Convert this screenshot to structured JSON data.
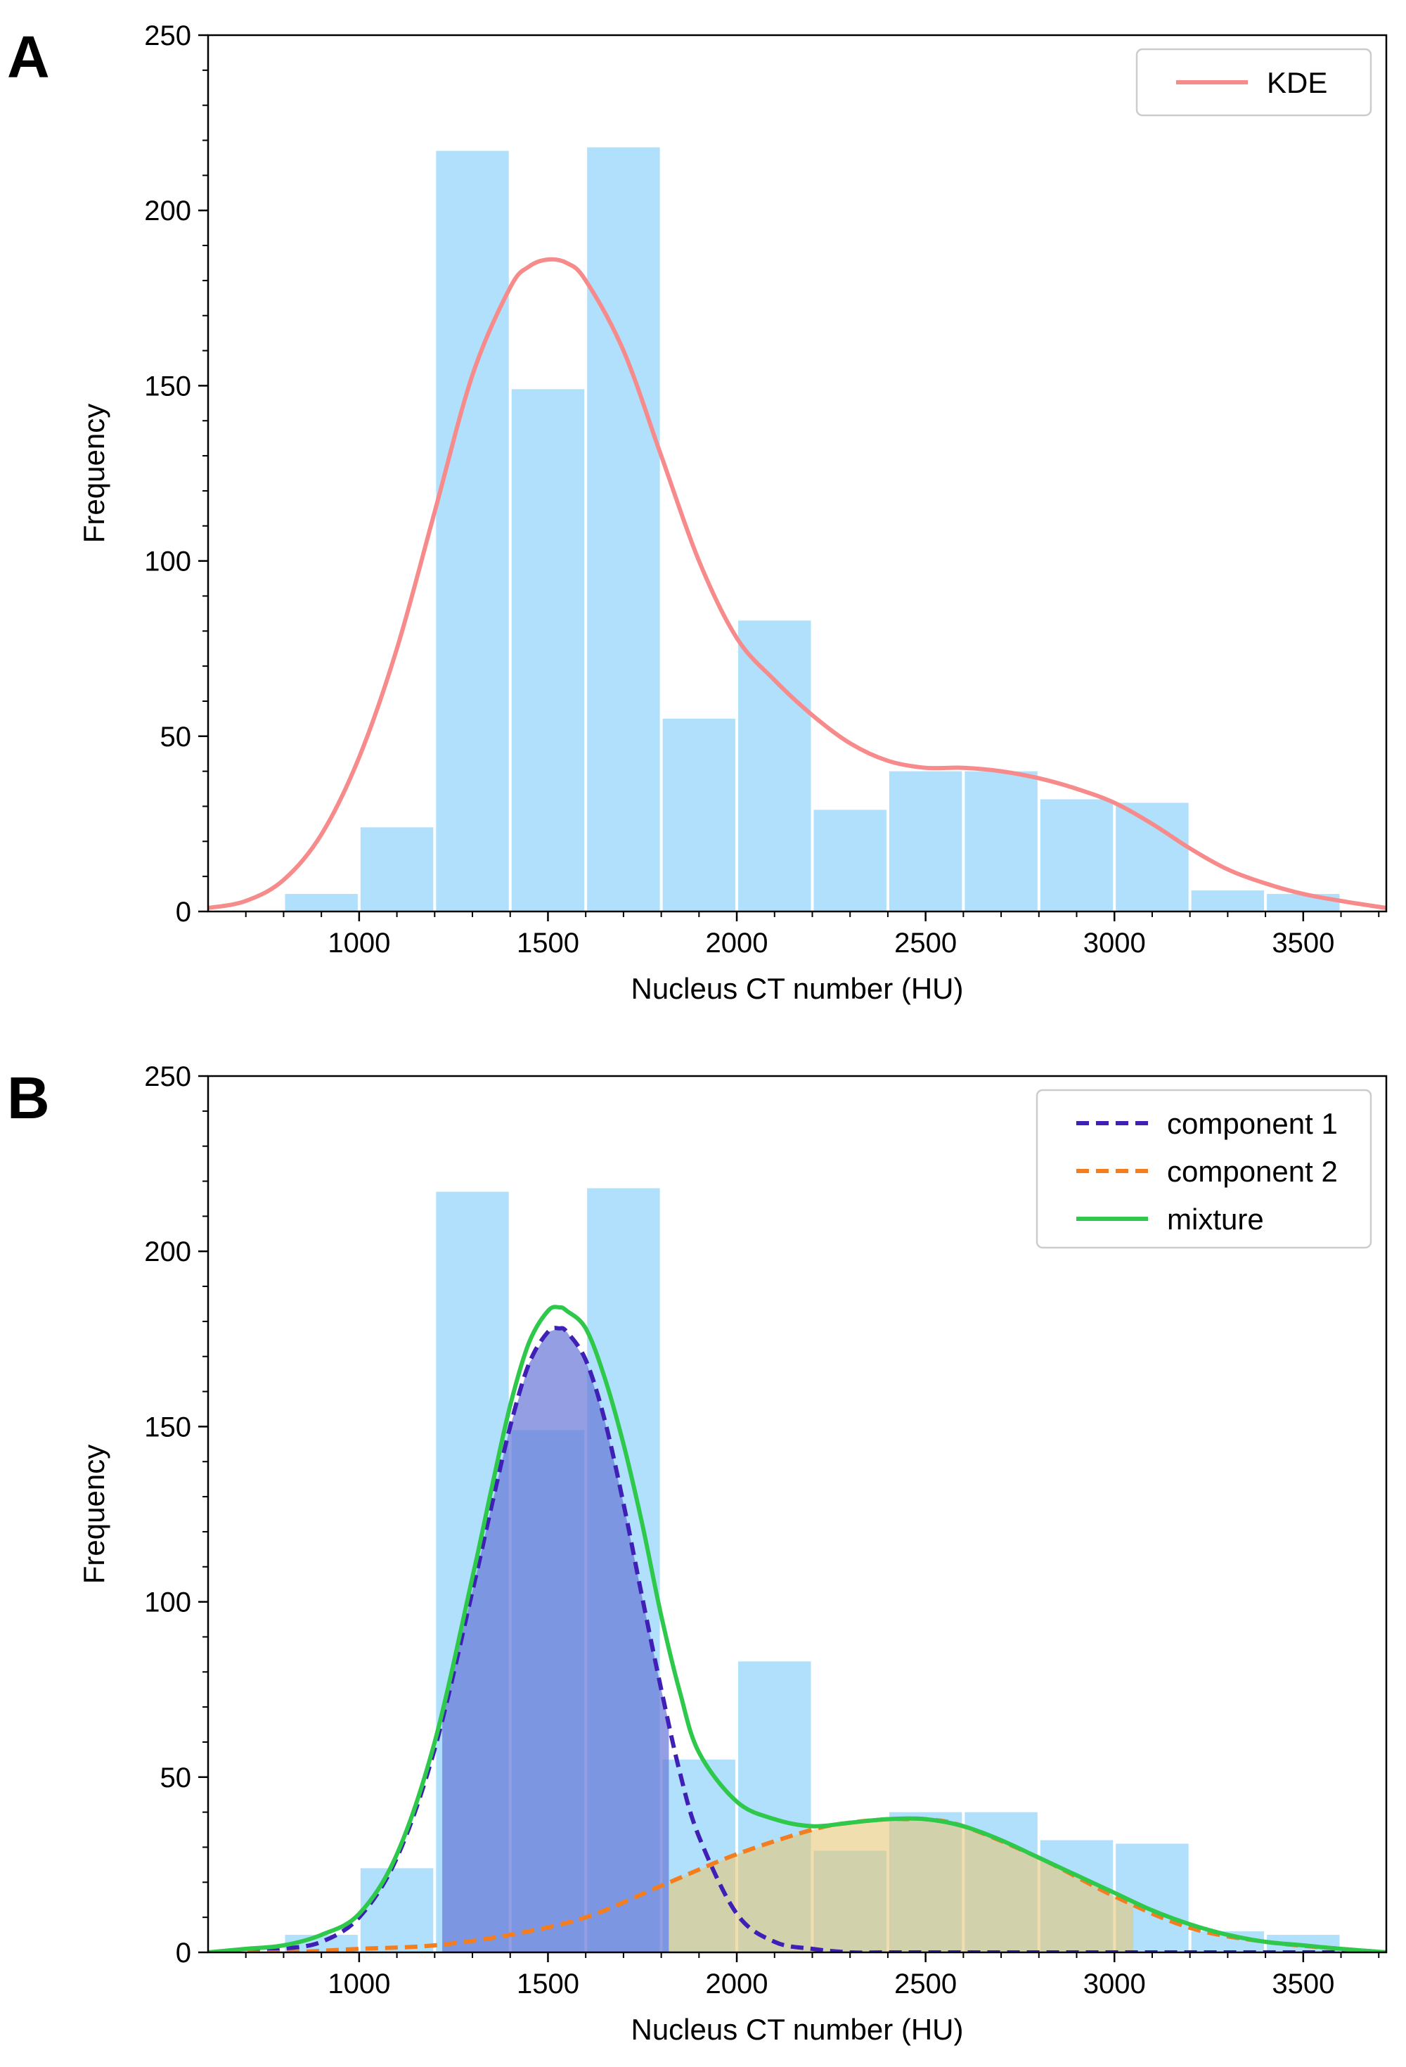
{
  "chart_data": [
    {
      "panel": "A",
      "type": "bar",
      "xlabel": "Nucleus CT number (HU)",
      "ylabel": "Frequency",
      "xlim": [
        600,
        3720
      ],
      "ylim": [
        0,
        250
      ],
      "xticks": [
        1000,
        1500,
        2000,
        2500,
        3000,
        3500
      ],
      "yticks": [
        0,
        50,
        100,
        150,
        200,
        250
      ],
      "grid": false,
      "legend_position": "top-right",
      "bars": {
        "color": "#b0e0fb",
        "bins": [
          {
            "x0": 800,
            "x1": 1000,
            "value": 5
          },
          {
            "x0": 1000,
            "x1": 1200,
            "value": 24
          },
          {
            "x0": 1200,
            "x1": 1400,
            "value": 217
          },
          {
            "x0": 1400,
            "x1": 1600,
            "value": 149
          },
          {
            "x0": 1600,
            "x1": 1800,
            "value": 218
          },
          {
            "x0": 1800,
            "x1": 2000,
            "value": 55
          },
          {
            "x0": 2000,
            "x1": 2200,
            "value": 83
          },
          {
            "x0": 2200,
            "x1": 2400,
            "value": 29
          },
          {
            "x0": 2400,
            "x1": 2600,
            "value": 40
          },
          {
            "x0": 2600,
            "x1": 2800,
            "value": 40
          },
          {
            "x0": 2800,
            "x1": 3000,
            "value": 32
          },
          {
            "x0": 3000,
            "x1": 3200,
            "value": 31
          },
          {
            "x0": 3200,
            "x1": 3400,
            "value": 6
          },
          {
            "x0": 3400,
            "x1": 3600,
            "value": 5
          }
        ]
      },
      "series": [
        {
          "name": "KDE",
          "style": "solid",
          "color": "#f78a8a",
          "x": [
            600,
            700,
            800,
            900,
            1000,
            1100,
            1200,
            1300,
            1400,
            1450,
            1500,
            1550,
            1600,
            1700,
            1800,
            1900,
            2000,
            2100,
            2200,
            2300,
            2400,
            2500,
            2600,
            2700,
            2800,
            2900,
            3000,
            3100,
            3200,
            3300,
            3400,
            3500,
            3600,
            3720
          ],
          "y": [
            1,
            3,
            9,
            22,
            44,
            75,
            114,
            153,
            178,
            184,
            186,
            185,
            180,
            160,
            130,
            100,
            78,
            66,
            56,
            48,
            43,
            41,
            41,
            40,
            38,
            35,
            31,
            25,
            18,
            12,
            8,
            5,
            3,
            1
          ]
        }
      ]
    },
    {
      "panel": "B",
      "type": "bar",
      "xlabel": "Nucleus CT number (HU)",
      "ylabel": "Frequency",
      "xlim": [
        600,
        3720
      ],
      "ylim": [
        0,
        250
      ],
      "xticks": [
        1000,
        1500,
        2000,
        2500,
        3000,
        3500
      ],
      "yticks": [
        0,
        50,
        100,
        150,
        200,
        250
      ],
      "grid": false,
      "legend_position": "top-right",
      "bars": {
        "color": "#b0e0fb",
        "bins": [
          {
            "x0": 800,
            "x1": 1000,
            "value": 5
          },
          {
            "x0": 1000,
            "x1": 1200,
            "value": 24
          },
          {
            "x0": 1200,
            "x1": 1400,
            "value": 217
          },
          {
            "x0": 1400,
            "x1": 1600,
            "value": 149
          },
          {
            "x0": 1600,
            "x1": 1800,
            "value": 218
          },
          {
            "x0": 1800,
            "x1": 2000,
            "value": 55
          },
          {
            "x0": 2000,
            "x1": 2200,
            "value": 83
          },
          {
            "x0": 2200,
            "x1": 2400,
            "value": 29
          },
          {
            "x0": 2400,
            "x1": 2600,
            "value": 40
          },
          {
            "x0": 2600,
            "x1": 2800,
            "value": 40
          },
          {
            "x0": 2800,
            "x1": 3000,
            "value": 32
          },
          {
            "x0": 3000,
            "x1": 3200,
            "value": 31
          },
          {
            "x0": 3200,
            "x1": 3400,
            "value": 6
          },
          {
            "x0": 3400,
            "x1": 3600,
            "value": 5
          }
        ]
      },
      "shaded_regions": [
        {
          "from": 1220,
          "to": 1820,
          "series_index": 0,
          "color": "#6a78d8",
          "opacity": 0.72
        },
        {
          "from": 1820,
          "to": 3050,
          "series_index": 1,
          "color": "#e8c878",
          "opacity": 0.6
        }
      ],
      "series": [
        {
          "name": "component 1",
          "style": "dashed",
          "color": "#3f1fb6",
          "x": [
            600,
            700,
            800,
            900,
            1000,
            1100,
            1200,
            1300,
            1350,
            1400,
            1450,
            1500,
            1530,
            1550,
            1600,
            1650,
            1700,
            1750,
            1800,
            1850,
            1900,
            2000,
            2100,
            2200,
            2300,
            2400,
            2600,
            3000,
            3720
          ],
          "y": [
            0,
            0,
            1,
            3,
            10,
            27,
            58,
            103,
            127,
            150,
            168,
            177,
            178,
            177,
            169,
            152,
            128,
            101,
            75,
            51,
            33,
            11,
            3,
            1,
            0,
            0,
            0,
            0,
            0
          ]
        },
        {
          "name": "component 2",
          "style": "dashed",
          "color": "#f47d1e",
          "x": [
            600,
            800,
            1000,
            1200,
            1400,
            1600,
            1800,
            2000,
            2200,
            2300,
            2400,
            2450,
            2500,
            2600,
            2800,
            3000,
            3200,
            3400,
            3600,
            3720
          ],
          "y": [
            0,
            0,
            1,
            2,
            5,
            10,
            19,
            28,
            35,
            37,
            38,
            38,
            38,
            36,
            27,
            16,
            7,
            3,
            1,
            0
          ]
        },
        {
          "name": "mixture",
          "style": "solid",
          "color": "#2ec84a",
          "x": [
            600,
            700,
            800,
            900,
            1000,
            1100,
            1200,
            1300,
            1350,
            1400,
            1450,
            1500,
            1530,
            1550,
            1600,
            1650,
            1700,
            1750,
            1800,
            1850,
            1900,
            2000,
            2100,
            2200,
            2300,
            2400,
            2500,
            2600,
            2700,
            2800,
            2900,
            3000,
            3100,
            3200,
            3300,
            3400,
            3500,
            3600,
            3720
          ],
          "y": [
            0,
            1,
            2,
            5,
            11,
            28,
            60,
            107,
            132,
            156,
            174,
            183,
            184,
            183,
            178,
            164,
            145,
            122,
            96,
            74,
            57,
            43,
            38,
            36,
            37,
            38,
            38,
            36,
            32,
            27,
            22,
            17,
            12,
            8,
            5,
            3,
            2,
            1,
            0
          ]
        }
      ]
    }
  ],
  "panels": [
    {
      "letter": "A"
    },
    {
      "letter": "B"
    }
  ]
}
